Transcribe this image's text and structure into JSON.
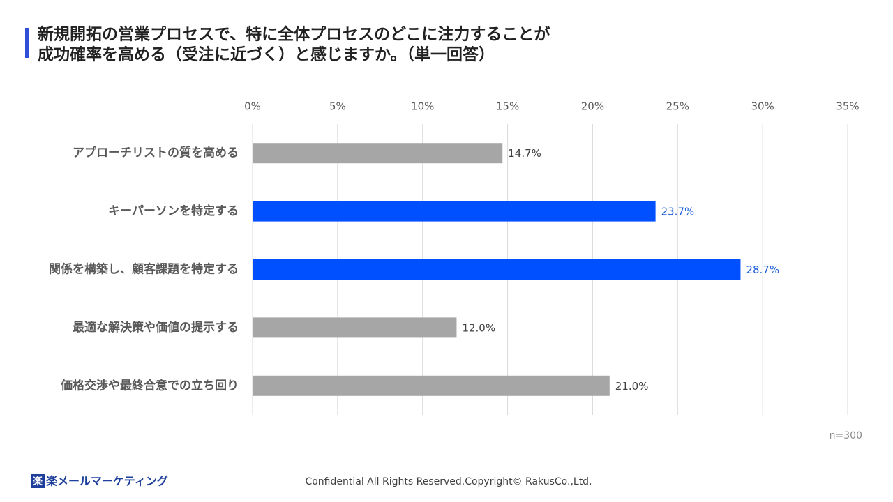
{
  "chart_data": {
    "type": "bar",
    "orientation": "horizontal",
    "title": [
      "新規開拓の営業プロセスで、特に全体プロセスのどこに注力することが",
      "成功確率を高める（受注に近づく）と感じますか。（単一回答）"
    ],
    "categories": [
      "アプローチリストの質を高める",
      "キーパーソンを特定する",
      "関係を構築し、顧客課題を特定する",
      "最適な解決策や価値の提示する",
      "価格交渉や最終合意での立ち回り"
    ],
    "values": [
      14.7,
      23.7,
      28.7,
      12.0,
      21.0
    ],
    "value_labels": [
      "14.7%",
      "23.7%",
      "28.7%",
      "12.0%",
      "21.0%"
    ],
    "colors": [
      "#a6a6a6",
      "#0050ff",
      "#0050ff",
      "#a6a6a6",
      "#a6a6a6"
    ],
    "label_colors": [
      "#404040",
      "#1f5fd6",
      "#1f5fd6",
      "#404040",
      "#404040"
    ],
    "xlim": [
      0,
      35
    ],
    "xticks": [
      {
        "value": 0,
        "label": "0%"
      },
      {
        "value": 5,
        "label": "5%"
      },
      {
        "value": 10,
        "label": "10%"
      },
      {
        "value": 15,
        "label": "15%"
      },
      {
        "value": 20,
        "label": "20%"
      },
      {
        "value": 25,
        "label": "25%"
      },
      {
        "value": 30,
        "label": "30%"
      },
      {
        "value": 35,
        "label": "35%"
      }
    ],
    "grid": true,
    "note": "n=300"
  },
  "footer": {
    "logo_mark": "楽",
    "logo_text": "楽メールマーケティング",
    "copyright": "Confidential All Rights Reserved.Copyright© RakusCo.,Ltd."
  }
}
